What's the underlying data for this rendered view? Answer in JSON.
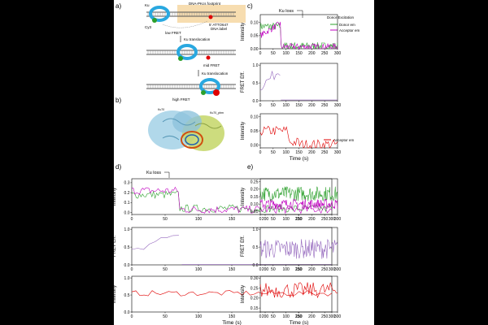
{
  "panel_labels": {
    "a": "a)",
    "b": "b)",
    "c": "c)",
    "d": "d)",
    "e": "e)"
  },
  "schematic": {
    "footprint_label": "DNA-PKcs footprint",
    "ku_label": "Ku",
    "cy3_label": "Cy3",
    "atto_label_line1": "5' ATTO647",
    "atto_label_line2": "DNA label",
    "low_fret": "low FRET",
    "translocation_1": "Ku translocation",
    "mid_fret": "mid FRET",
    "translocation_2": "Ku translocation",
    "high_fret": "high FRET",
    "ku70_label": "Ku70",
    "ku80_label": "Ku70_pbm"
  },
  "colors": {
    "donor": "#2ca02c",
    "acceptor": "#c000c0",
    "fret": "#9467bd",
    "acc_red": "#e00000"
  },
  "chart_data": [
    {
      "id": "c1",
      "type": "line",
      "ylabel": "Intensity",
      "annotation": "Ku loss",
      "legend_title": "Donor Excitation",
      "x_ticks": [
        0,
        50,
        100,
        150,
        200,
        250,
        300
      ],
      "y_ticks": [
        "0.00",
        "0.05",
        "0.10"
      ],
      "ylim": [
        0,
        0.13
      ],
      "xlim": [
        0,
        300
      ],
      "series": [
        {
          "name": "Donor em",
          "key": "donor"
        },
        {
          "name": "Acceptor em",
          "key": "acceptor"
        }
      ]
    },
    {
      "id": "c2",
      "type": "line",
      "ylabel": "FRET Eff.",
      "x_ticks": [
        0,
        50,
        100,
        150,
        200,
        250,
        300
      ],
      "y_ticks": [
        "0.0",
        "0.5",
        "1.0"
      ],
      "ylim": [
        0,
        1.05
      ],
      "xlim": [
        0,
        300
      ]
    },
    {
      "id": "c3",
      "type": "line",
      "ylabel": "Intensity",
      "xlabel": "Time (s)",
      "x_ticks": [
        0,
        50,
        100,
        150,
        200,
        250,
        300
      ],
      "y_ticks": [
        "0.00",
        "0.05",
        "0.10"
      ],
      "ylim": [
        -0.01,
        0.11
      ],
      "xlim": [
        0,
        300
      ],
      "series": [
        {
          "name": "Acceptor em",
          "key": "acc_red"
        }
      ]
    },
    {
      "id": "d1",
      "type": "line",
      "ylabel": "Intensity",
      "annotation": "Ku loss",
      "x_ticks": [
        0,
        50,
        100,
        150,
        200,
        250,
        300
      ],
      "y_ticks": [
        "0.0",
        "0.1",
        "0.2",
        "0.3"
      ],
      "ylim": [
        -0.02,
        0.34
      ],
      "xlim": [
        0,
        300
      ]
    },
    {
      "id": "d2",
      "type": "line",
      "ylabel": "FRET Eff.",
      "x_ticks": [
        0,
        50,
        100,
        150,
        200,
        250,
        300
      ],
      "y_ticks": [
        "0.0",
        "0.5",
        "1.0"
      ],
      "ylim": [
        0,
        1.05
      ],
      "xlim": [
        0,
        300
      ]
    },
    {
      "id": "d3",
      "type": "line",
      "ylabel": "Intensity",
      "xlabel": "Time (s)",
      "x_ticks": [
        0,
        50,
        100,
        150,
        200,
        250,
        300
      ],
      "y_ticks": [
        "0.0",
        "0.5",
        "1.0"
      ],
      "ylim": [
        0,
        1.05
      ],
      "xlim": [
        0,
        300
      ]
    },
    {
      "id": "e1",
      "type": "line",
      "ylabel": "Intensity",
      "x_ticks": [
        0,
        50,
        100,
        150,
        200,
        250,
        300
      ],
      "y_ticks": [
        "0.05",
        "0.10",
        "0.15",
        "0.20",
        "0.25"
      ],
      "ylim": [
        0.03,
        0.27
      ],
      "xlim": [
        0,
        300
      ]
    },
    {
      "id": "e2",
      "type": "line",
      "ylabel": "FRET Eff.",
      "x_ticks": [
        0,
        50,
        100,
        150,
        200,
        250,
        300
      ],
      "y_ticks": [
        "0.0",
        "0.5",
        "1.0"
      ],
      "ylim": [
        0,
        1.05
      ],
      "xlim": [
        0,
        300
      ]
    },
    {
      "id": "e3",
      "type": "line",
      "ylabel": "Intensity",
      "xlabel": "Time (s)",
      "x_ticks": [
        0,
        50,
        100,
        150,
        200,
        250,
        300
      ],
      "y_ticks": [
        "0.15",
        "0.20",
        "0.25",
        "0.30"
      ],
      "ylim": [
        0.13,
        0.31
      ],
      "xlim": [
        0,
        300
      ]
    }
  ]
}
